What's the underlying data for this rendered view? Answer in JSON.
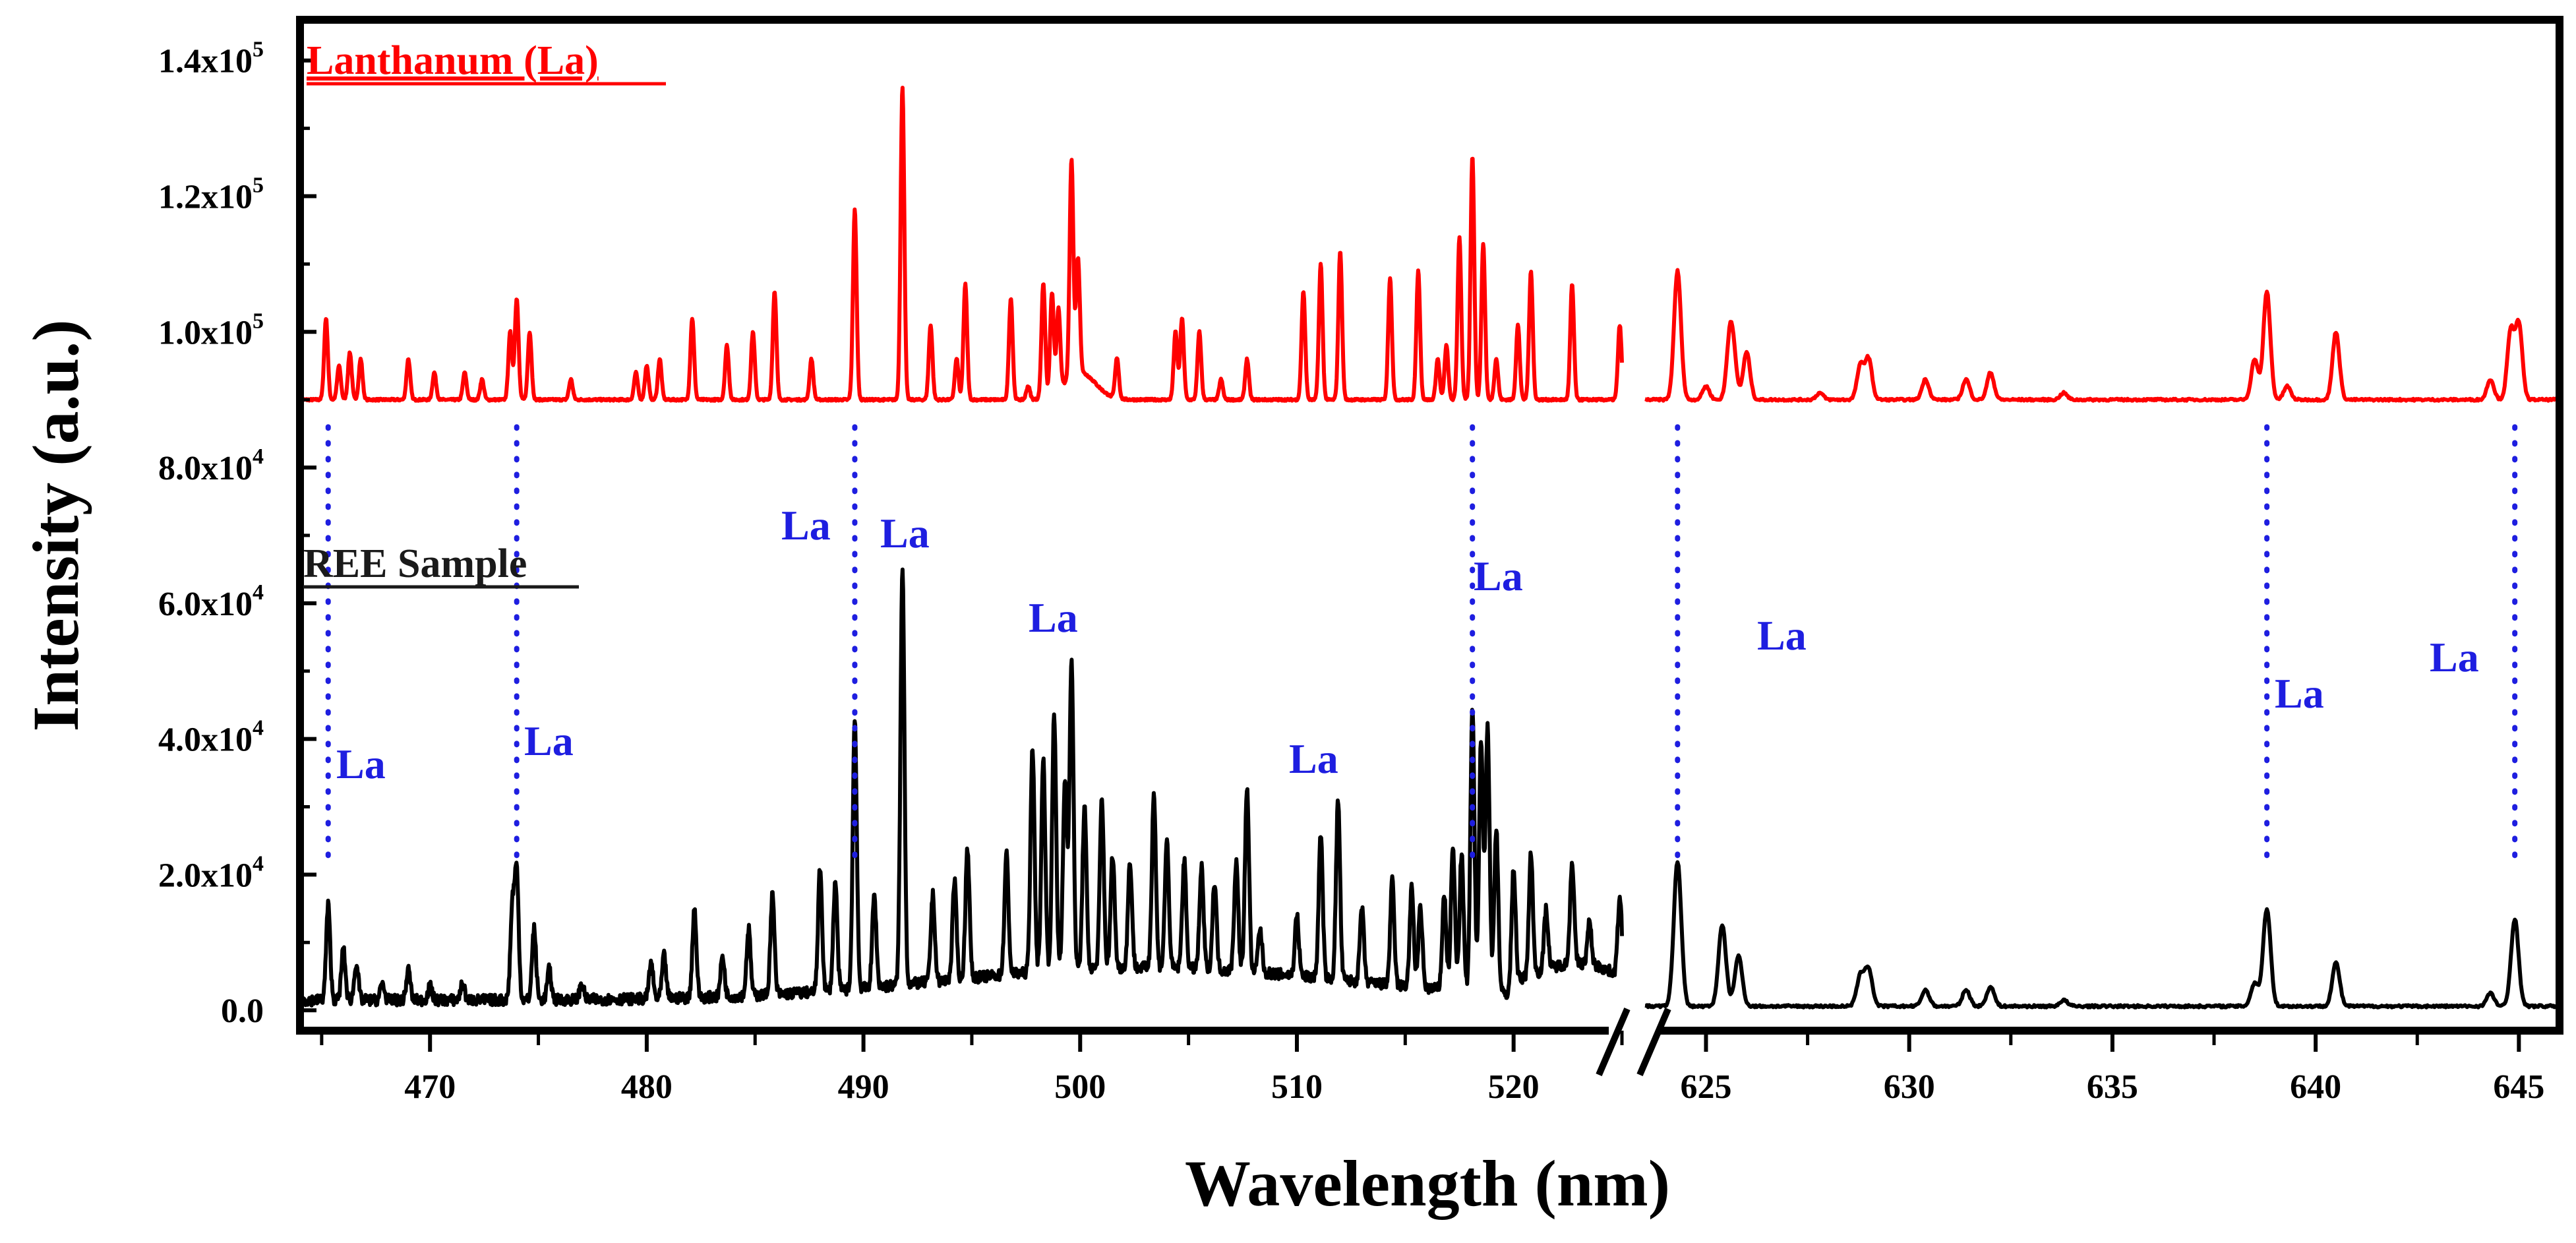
{
  "chart_data": {
    "type": "line",
    "ylabel": "Intensity (a.u.)",
    "xlabel": "Wavelength (nm)",
    "ylim": [
      -3000,
      146000
    ],
    "xlim_segments": [
      [
        464,
        525
      ],
      [
        623.5,
        646
      ]
    ],
    "y_ticks": [
      {
        "value": 0,
        "label": "0.0"
      },
      {
        "value": 20000,
        "label": "2.0x10",
        "exp": "4"
      },
      {
        "value": 40000,
        "label": "4.0x10",
        "exp": "4"
      },
      {
        "value": 60000,
        "label": "6.0x10",
        "exp": "4"
      },
      {
        "value": 80000,
        "label": "8.0x10",
        "exp": "4"
      },
      {
        "value": 100000,
        "label": "1.0x10",
        "exp": "5"
      },
      {
        "value": 120000,
        "label": "1.2x10",
        "exp": "5"
      },
      {
        "value": 140000,
        "label": "1.4x10",
        "exp": "5"
      }
    ],
    "x_ticks": [
      {
        "value": 470,
        "label": "470"
      },
      {
        "value": 480,
        "label": "480"
      },
      {
        "value": 490,
        "label": "490"
      },
      {
        "value": 500,
        "label": "500"
      },
      {
        "value": 510,
        "label": "510"
      },
      {
        "value": 520,
        "label": "520"
      },
      {
        "value": 625,
        "label": "625"
      },
      {
        "value": 630,
        "label": "630"
      },
      {
        "value": 635,
        "label": "635"
      },
      {
        "value": 640,
        "label": "640"
      },
      {
        "value": 645,
        "label": "645"
      }
    ],
    "series": [
      {
        "name": "Lanthanum (La)",
        "color": "#ff0000",
        "baseline": 90000,
        "peaks": [
          [
            465.2,
            102000
          ],
          [
            465.8,
            95000
          ],
          [
            466.3,
            97000
          ],
          [
            466.8,
            96000
          ],
          [
            469,
            96000
          ],
          [
            470.2,
            94000
          ],
          [
            471.6,
            94000
          ],
          [
            472.4,
            93000
          ],
          [
            473.7,
            100000
          ],
          [
            474,
            105000
          ],
          [
            474.6,
            100000
          ],
          [
            476.5,
            93000
          ],
          [
            479.5,
            94000
          ],
          [
            480,
            95000
          ],
          [
            480.6,
            96000
          ],
          [
            482.1,
            102000
          ],
          [
            483.7,
            98000
          ],
          [
            484.9,
            100000
          ],
          [
            485.9,
            106000
          ],
          [
            487.6,
            96000
          ],
          [
            489.6,
            118000
          ],
          [
            491.8,
            136000
          ],
          [
            493.1,
            101000
          ],
          [
            494.3,
            96000
          ],
          [
            494.7,
            107000
          ],
          [
            496.8,
            105000
          ],
          [
            497.6,
            92000
          ],
          [
            498.3,
            107000
          ],
          [
            498.7,
            105000
          ],
          [
            499,
            102000
          ],
          [
            499.6,
            122000
          ],
          [
            499.9,
            107000
          ],
          [
            501.7,
            96000
          ],
          [
            504.4,
            100000
          ],
          [
            504.7,
            102000
          ],
          [
            505.5,
            100000
          ],
          [
            506.5,
            93000
          ],
          [
            507.7,
            96000
          ],
          [
            510.3,
            106000
          ],
          [
            511.1,
            110000
          ],
          [
            512,
            112000
          ],
          [
            514.3,
            108000
          ],
          [
            515.6,
            109000
          ],
          [
            516.5,
            96000
          ],
          [
            516.9,
            98000
          ],
          [
            517.5,
            114000
          ],
          [
            518.1,
            126000
          ],
          [
            518.6,
            113000
          ],
          [
            519.2,
            96000
          ],
          [
            520.2,
            101000
          ],
          [
            520.8,
            109000
          ],
          [
            522.7,
            107000
          ],
          [
            524.9,
            101000
          ],
          [
            625,
            92000
          ],
          [
            625.7,
            93000
          ],
          [
            627.8,
            91000
          ],
          [
            624.3,
            109000
          ],
          [
            625.6,
            100000
          ],
          [
            626,
            97000
          ],
          [
            628.8,
            95000
          ],
          [
            629,
            96000
          ],
          [
            630.4,
            93000
          ],
          [
            631.4,
            93000
          ],
          [
            632,
            94000
          ],
          [
            633.8,
            91000
          ],
          [
            638.5,
            96000
          ],
          [
            638.8,
            106000
          ],
          [
            639.3,
            92000
          ],
          [
            640.5,
            100000
          ],
          [
            644.3,
            93000
          ],
          [
            644.8,
            100000
          ],
          [
            645,
            101000
          ]
        ]
      },
      {
        "name": "REE Sample",
        "color": "#000000",
        "peaks": [
          [
            465.3,
            15500
          ],
          [
            466,
            9000
          ],
          [
            466.6,
            7000
          ],
          [
            467.8,
            4000
          ],
          [
            469,
            6000
          ],
          [
            470,
            3500
          ],
          [
            471.5,
            4000
          ],
          [
            473.8,
            15000
          ],
          [
            474,
            20000
          ],
          [
            474.8,
            12000
          ],
          [
            475.5,
            6000
          ],
          [
            477,
            4000
          ],
          [
            480.2,
            7000
          ],
          [
            480.8,
            8000
          ],
          [
            482.2,
            15000
          ],
          [
            483.5,
            8000
          ],
          [
            484.7,
            12000
          ],
          [
            485.8,
            17000
          ],
          [
            488,
            21000
          ],
          [
            488.7,
            19000
          ],
          [
            489.6,
            43000
          ],
          [
            490.5,
            17000
          ],
          [
            491.8,
            65000
          ],
          [
            493.2,
            17000
          ],
          [
            494.2,
            19000
          ],
          [
            494.8,
            24000
          ],
          [
            496.6,
            23000
          ],
          [
            497.8,
            39000
          ],
          [
            498.3,
            37000
          ],
          [
            498.8,
            43500
          ],
          [
            499.3,
            34000
          ],
          [
            499.6,
            51500
          ],
          [
            500.2,
            30000
          ],
          [
            501,
            31000
          ],
          [
            501.5,
            23000
          ],
          [
            502.3,
            22000
          ],
          [
            503.4,
            32000
          ],
          [
            504,
            25000
          ],
          [
            504.8,
            22000
          ],
          [
            505.6,
            21000
          ],
          [
            506.2,
            19000
          ],
          [
            507.2,
            22000
          ],
          [
            507.7,
            33000
          ],
          [
            508.3,
            12000
          ],
          [
            510,
            14000
          ],
          [
            511.1,
            26000
          ],
          [
            511.9,
            31000
          ],
          [
            513,
            15000
          ],
          [
            514.4,
            19000
          ],
          [
            515.3,
            18000
          ],
          [
            515.7,
            15000
          ],
          [
            516.8,
            17000
          ],
          [
            517.2,
            24000
          ],
          [
            517.6,
            23000
          ],
          [
            518.1,
            44500
          ],
          [
            518.5,
            40000
          ],
          [
            518.8,
            42000
          ],
          [
            519.2,
            27000
          ],
          [
            520,
            21000
          ],
          [
            520.8,
            23000
          ],
          [
            521.5,
            15000
          ],
          [
            522.7,
            22000
          ],
          [
            523.5,
            13000
          ],
          [
            524.9,
            17000
          ],
          [
            624.3,
            22000
          ],
          [
            625.4,
            12500
          ],
          [
            625.8,
            8000
          ],
          [
            628.8,
            5000
          ],
          [
            629,
            6000
          ],
          [
            630.4,
            3000
          ],
          [
            631.4,
            3000
          ],
          [
            632,
            3500
          ],
          [
            633.8,
            1500
          ],
          [
            638.5,
            4000
          ],
          [
            638.8,
            15000
          ],
          [
            640.5,
            7000
          ],
          [
            644.3,
            2500
          ],
          [
            644.9,
            13500
          ]
        ]
      }
    ],
    "series_labels": [
      "Lanthanum (La)",
      "REE Sample"
    ],
    "annotations": [
      {
        "text": "La",
        "wavelength": 465.3,
        "value": 39000
      },
      {
        "text": "La",
        "wavelength": 474,
        "value": 40000
      },
      {
        "text": "La",
        "wavelength": 489.6,
        "value": 70500
      },
      {
        "text": "La",
        "wavelength": 491.8,
        "value": 69000
      },
      {
        "text": "La",
        "wavelength": 499.6,
        "value": 56500
      },
      {
        "text": "La",
        "wavelength": 511.9,
        "value": 36000
      },
      {
        "text": "La",
        "wavelength": 518.1,
        "value": 63000
      },
      {
        "text": "La",
        "wavelength": 624.3,
        "value": 52500
      },
      {
        "text": "La",
        "wavelength": 638.8,
        "value": 43000
      },
      {
        "text": "La",
        "wavelength": 644.9,
        "value": 47500
      }
    ],
    "marked_lines": [
      465.3,
      474,
      489.6,
      518.1,
      624.3,
      638.8,
      644.9
    ],
    "axis_break": "//",
    "colors": {
      "la_series": "#ff0000",
      "ree_series": "#000000",
      "annotation": "#1e1ee0"
    }
  }
}
